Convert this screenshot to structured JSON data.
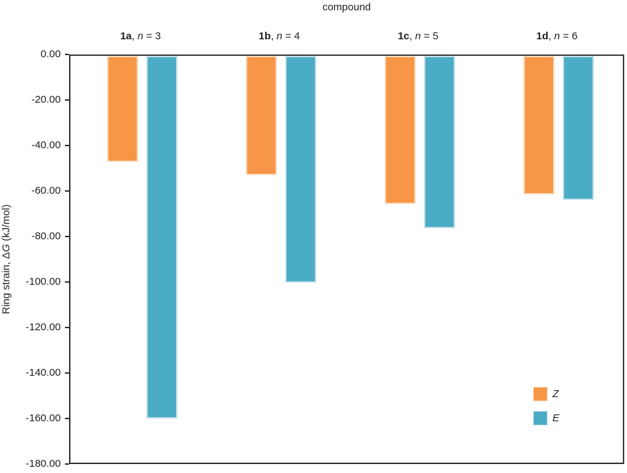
{
  "chart_data": {
    "type": "bar",
    "title": "compound",
    "y_axis_title": {
      "pre": "Ring strain, Δ",
      "italic": "G",
      "post": " (kJ/mol)"
    },
    "categories": [
      {
        "label": "1a",
        "var": "n",
        "value": "3"
      },
      {
        "label": "1b",
        "var": "n",
        "value": "4"
      },
      {
        "label": "1c",
        "var": "n",
        "value": "5"
      },
      {
        "label": "1d",
        "var": "n",
        "value": "6"
      }
    ],
    "series": [
      {
        "name": "Z",
        "color": "#F79646",
        "border_color": "#FBDDC0",
        "values": [
          -46.8,
          -52.3,
          -65.3,
          -60.8
        ]
      },
      {
        "name": "E",
        "color": "#4BACC6",
        "border_color": "#C3E0EA",
        "values": [
          -159.3,
          -99.6,
          -75.7,
          -63.2
        ]
      }
    ],
    "ylim": [
      -180,
      0
    ],
    "y_ticks": [
      "0.00",
      "-20.00",
      "-40.00",
      "-60.00",
      "-80.00",
      "-100.00",
      "-120.00",
      "-140.00",
      "-160.00",
      "-180.00"
    ],
    "grid": false,
    "legend_position": "inside-right-bottom",
    "axis_color": "#2e2e2e"
  }
}
